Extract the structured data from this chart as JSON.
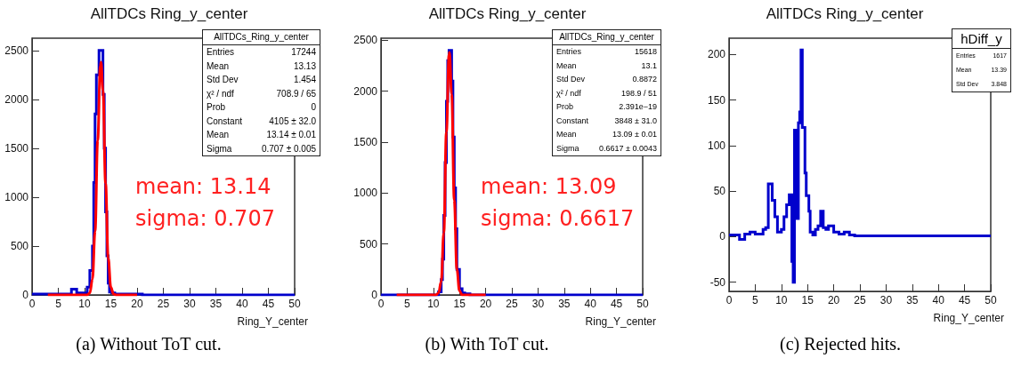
{
  "chart_data": [
    {
      "type": "step",
      "title": "AllTDCs Ring_y_center",
      "subtitle": "(a) Without ToT cut.",
      "xlabel": "Ring_Y_center",
      "xlim": [
        0,
        50
      ],
      "xticks": [
        0,
        5,
        10,
        15,
        20,
        25,
        30,
        35,
        40,
        45,
        50
      ],
      "ylim": [
        0,
        2625
      ],
      "yticks": [
        0,
        500,
        1000,
        1500,
        2000,
        2500
      ],
      "annotations": [
        "AllTDCs_Ring_y_center\nEntries\t17244\nMean\t13.13\nStd Dev\t1.454\nχ² / ndf\t708.9 / 65\nProb\t0\nConstant\t4105 ± 32.0\nMean\t13.14 ± 0.01\nSigma\t0.707 ± 0.005",
        "mean: 13.14\nsigma: 0.707"
      ],
      "series": [
        {
          "color": "#0000cc",
          "x": [
            0,
            7.5,
            8.5,
            10,
            10.5,
            11,
            11.5,
            11.75,
            12,
            12.25,
            12.75,
            13.5,
            13.75,
            14,
            14.25,
            14.5,
            14.75,
            15.25,
            15.75,
            19,
            21,
            50
          ],
          "values": [
            10,
            60,
            20,
            10,
            80,
            250,
            500,
            1150,
            1850,
            2250,
            2500,
            2050,
            1500,
            850,
            400,
            120,
            30,
            20,
            10,
            10,
            0,
            0
          ]
        },
        {
          "type": "line",
          "color": "#ff0000",
          "x": [
            3,
            10,
            10.5,
            11,
            11.5,
            12,
            12.5,
            13,
            13.14,
            13.5,
            14,
            14.5,
            15,
            15.5,
            16,
            20
          ],
          "values": [
            0,
            0,
            0,
            20,
            160,
            650,
            1580,
            2340,
            2380,
            2090,
            1140,
            380,
            80,
            10,
            0,
            0
          ]
        }
      ]
    },
    {
      "type": "step",
      "title": "AllTDCs Ring_y_center",
      "subtitle": "(b) With ToT cut.",
      "xlabel": "Ring_Y_center",
      "xlim": [
        0,
        50
      ],
      "xticks": [
        0,
        5,
        10,
        15,
        20,
        25,
        30,
        35,
        40,
        45,
        50
      ],
      "ylim": [
        0,
        2520
      ],
      "yticks": [
        0,
        500,
        1000,
        1500,
        2000,
        2500
      ],
      "annotations": [
        "AllTDCs_Ring_y_center\nEntries\t15618\nMean\t13.1\nStd Dev\t0.8872\nχ² / ndf\t198.9 / 51\nProb\t2.391e−19\nConstant\t3848 ± 31.0\nMean\t13.09 ± 0.01\nSigma\t0.6617 ± 0.0043",
        "mean: 13.09\nsigma: 0.6617"
      ],
      "series": [
        {
          "color": "#0000cc",
          "x": [
            0,
            11,
            11.5,
            11.75,
            12,
            12.25,
            12.5,
            12.75,
            13,
            13.5,
            13.75,
            14,
            14.25,
            14.5,
            15,
            15.5,
            16,
            17,
            50
          ],
          "values": [
            0,
            30,
            150,
            350,
            780,
            1300,
            1900,
            2300,
            2400,
            2100,
            1550,
            1050,
            650,
            250,
            60,
            20,
            10,
            0,
            0
          ]
        },
        {
          "type": "line",
          "color": "#ff0000",
          "x": [
            3,
            10.5,
            11,
            11.5,
            12,
            12.5,
            13,
            13.09,
            13.5,
            14,
            14.5,
            15,
            15.5,
            16,
            20
          ],
          "values": [
            0,
            0,
            20,
            130,
            610,
            1600,
            2360,
            2380,
            1970,
            930,
            250,
            40,
            0,
            0,
            0
          ]
        }
      ]
    },
    {
      "type": "step",
      "title": "AllTDCs Ring_y_center",
      "subtitle": "(c) Rejected hits.",
      "xlabel": "Ring_Y_center",
      "xlim": [
        0,
        50
      ],
      "xticks": [
        0,
        5,
        10,
        15,
        20,
        25,
        30,
        35,
        40,
        45,
        50
      ],
      "ylim": [
        -60,
        218
      ],
      "yticks": [
        -50,
        0,
        50,
        100,
        150,
        200
      ],
      "annotations": [
        "hDiff_y\nEntries\t1617\nMean\t13.39\nStd Dev\t3.848"
      ],
      "series": [
        {
          "color": "#0000cc",
          "x": [
            0,
            2,
            3,
            4,
            5,
            6.5,
            7,
            7.5,
            8.25,
            8.75,
            9.25,
            10,
            10.5,
            11,
            11.5,
            12,
            12.25,
            12.5,
            13,
            13.25,
            13.5,
            13.75,
            14,
            14.5,
            14.75,
            15.25,
            15.5,
            16,
            16.5,
            17,
            17.5,
            18,
            18.5,
            19,
            19.5,
            20,
            21,
            22,
            23,
            24,
            25,
            50
          ],
          "values": [
            2,
            -3,
            3,
            5,
            3,
            8,
            10,
            58,
            40,
            22,
            5,
            8,
            22,
            35,
            46,
            -27,
            -50,
            117,
            20,
            125,
            137,
            205,
            120,
            70,
            45,
            28,
            5,
            2,
            8,
            12,
            28,
            10,
            8,
            12,
            12,
            5,
            3,
            5,
            2,
            1,
            1,
            1
          ]
        }
      ]
    }
  ]
}
